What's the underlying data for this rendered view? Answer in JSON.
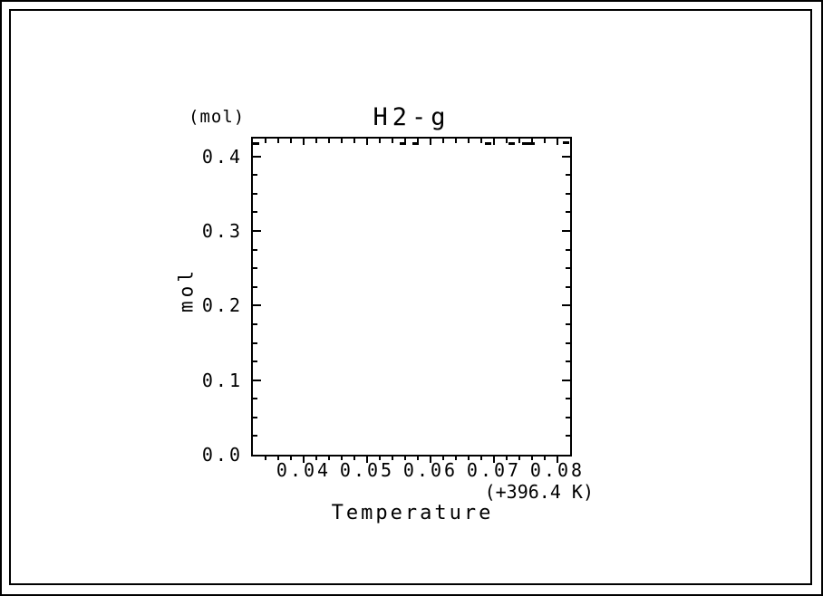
{
  "page": {
    "background": "#ffffff",
    "frame_color": "#000000"
  },
  "chart_data": {
    "type": "line",
    "title": "H2-g",
    "unit_label": "(mol)",
    "ylabel": "mol",
    "xlabel": "Temperature",
    "x_offset_label": "(+396.4 K)",
    "xlim": [
      0.032,
      0.082
    ],
    "ylim": [
      0,
      0.424
    ],
    "x_major_ticks": [
      0.04,
      0.05,
      0.06,
      0.07,
      0.08
    ],
    "x_tick_labels": [
      "0.04",
      "0.05",
      "0.06",
      "0.07",
      "0.08"
    ],
    "x_minor_step": 0.002,
    "y_major_ticks": [
      0.0,
      0.1,
      0.2,
      0.3,
      0.4
    ],
    "y_tick_labels": [
      "0.0",
      "0.1",
      "0.2",
      "0.3",
      "0.4"
    ],
    "y_minor_step": 0.025,
    "grid": false,
    "legend_position": "none",
    "line_color": "#000000",
    "line_style": "dotted",
    "series": [
      {
        "name": "H2-g",
        "points": [
          {
            "x": 0.0321,
            "y": 0.4175
          },
          {
            "x": 0.0555,
            "y": 0.4175
          },
          {
            "x": 0.0575,
            "y": 0.4175
          },
          {
            "x": 0.069,
            "y": 0.418
          },
          {
            "x": 0.0727,
            "y": 0.418
          },
          {
            "x": 0.0748,
            "y": 0.4185
          },
          {
            "x": 0.0758,
            "y": 0.4185
          },
          {
            "x": 0.0813,
            "y": 0.419
          }
        ]
      }
    ]
  }
}
